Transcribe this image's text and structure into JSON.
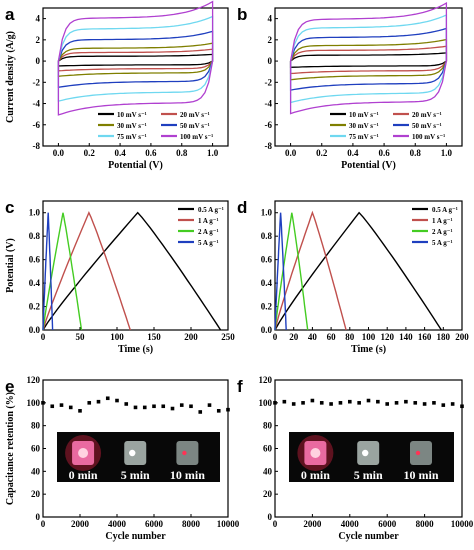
{
  "chart_data": [
    {
      "panel_label": "a",
      "type": "line",
      "subtype": "cyclic-voltammetry",
      "xlabel": "Potential (V)",
      "ylabel": "Current density (A/g)",
      "xlim": [
        -0.1,
        1.1
      ],
      "ylim": [
        -8,
        5
      ],
      "xticks": [
        0.0,
        0.2,
        0.4,
        0.6,
        0.8,
        1.0
      ],
      "yticks": [
        -8,
        -6,
        -4,
        -2,
        0,
        2,
        4
      ],
      "legend_position": "bottom-right",
      "series": [
        {
          "name": "10 mV s⁻¹",
          "color": "#000000",
          "upper": 0.45,
          "lower": -0.35
        },
        {
          "name": "20 mV s⁻¹",
          "color": "#c0504d",
          "upper": 0.8,
          "lower": -0.7
        },
        {
          "name": "30 mV s⁻¹",
          "color": "#7f7f00",
          "upper": 1.2,
          "lower": -1.1
        },
        {
          "name": "50 mV s⁻¹",
          "color": "#1f3fbf",
          "upper": 2.0,
          "lower": -1.9
        },
        {
          "name": "75 mV s⁻¹",
          "color": "#6fd8f0",
          "upper": 3.0,
          "lower": -2.9
        },
        {
          "name": "100 mV s⁻¹",
          "color": "#b040d0",
          "upper": 4.0,
          "lower": -3.9
        }
      ]
    },
    {
      "panel_label": "b",
      "type": "line",
      "subtype": "cyclic-voltammetry",
      "xlabel": "Potential (V)",
      "ylabel": "",
      "xlim": [
        -0.1,
        1.1
      ],
      "ylim": [
        -8,
        5
      ],
      "xticks": [
        0.0,
        0.2,
        0.4,
        0.6,
        0.8,
        1.0
      ],
      "yticks": [
        -8,
        -6,
        -4,
        -2,
        0,
        2,
        4
      ],
      "legend_position": "bottom-right",
      "series": [
        {
          "name": "10 mV s⁻¹",
          "color": "#000000",
          "upper": 0.55,
          "lower": -0.45
        },
        {
          "name": "20 mV s⁻¹",
          "color": "#c0504d",
          "upper": 1.0,
          "lower": -0.9
        },
        {
          "name": "30 mV s⁻¹",
          "color": "#7f7f00",
          "upper": 1.45,
          "lower": -1.35
        },
        {
          "name": "50 mV s⁻¹",
          "color": "#1f3fbf",
          "upper": 2.2,
          "lower": -2.1
        },
        {
          "name": "75 mV s⁻¹",
          "color": "#6fd8f0",
          "upper": 3.1,
          "lower": -3.0
        },
        {
          "name": "100 mV s⁻¹",
          "color": "#b040d0",
          "upper": 3.9,
          "lower": -3.8
        }
      ]
    },
    {
      "panel_label": "c",
      "type": "line",
      "subtype": "galvanostatic-charge-discharge",
      "xlabel": "Time (s)",
      "ylabel": "Potential (V)",
      "xlim": [
        0,
        250
      ],
      "ylim": [
        0,
        1.1
      ],
      "xticks": [
        0,
        50,
        100,
        150,
        200,
        250
      ],
      "yticks": [
        0.0,
        0.2,
        0.4,
        0.6,
        0.8,
        1.0
      ],
      "legend_position": "top-right",
      "series": [
        {
          "name": "0.5 A g⁻¹",
          "color": "#000000",
          "peak_time": 128,
          "end_time": 240
        },
        {
          "name": "1 A g⁻¹",
          "color": "#c0504d",
          "peak_time": 62,
          "end_time": 118
        },
        {
          "name": "2 A g⁻¹",
          "color": "#44cc22",
          "peak_time": 27,
          "end_time": 52
        },
        {
          "name": "5 A g⁻¹",
          "color": "#1f3fbf",
          "peak_time": 7,
          "end_time": 13
        }
      ]
    },
    {
      "panel_label": "d",
      "type": "line",
      "subtype": "galvanostatic-charge-discharge",
      "xlabel": "Time (s)",
      "ylabel": "",
      "xlim": [
        0,
        200
      ],
      "ylim": [
        0,
        1.1
      ],
      "xticks": [
        0,
        20,
        40,
        60,
        80,
        100,
        120,
        140,
        160,
        180,
        200
      ],
      "yticks": [
        0.0,
        0.2,
        0.4,
        0.6,
        0.8,
        1.0
      ],
      "legend_position": "top-right",
      "series": [
        {
          "name": "0.5 A g⁻¹",
          "color": "#000000",
          "peak_time": 90,
          "end_time": 178
        },
        {
          "name": "1 A g⁻¹",
          "color": "#c0504d",
          "peak_time": 40,
          "end_time": 76
        },
        {
          "name": "2 A g⁻¹",
          "color": "#44cc22",
          "peak_time": 18,
          "end_time": 35
        },
        {
          "name": "5 A g⁻¹",
          "color": "#1f3fbf",
          "peak_time": 6,
          "end_time": 12
        }
      ]
    },
    {
      "panel_label": "e",
      "type": "scatter",
      "xlabel": "Cycle number",
      "ylabel": "Capacitance retention (%)",
      "xlim": [
        0,
        10000
      ],
      "ylim": [
        0,
        120
      ],
      "xticks": [
        0,
        2000,
        4000,
        6000,
        8000,
        10000
      ],
      "yticks": [
        0,
        20,
        40,
        60,
        80,
        100,
        120
      ],
      "x": [
        0,
        500,
        1000,
        1500,
        2000,
        2500,
        3000,
        3500,
        4000,
        4500,
        5000,
        5500,
        6000,
        6500,
        7000,
        7500,
        8000,
        8500,
        9000,
        9500,
        10000
      ],
      "y": [
        100,
        97,
        98,
        96,
        93,
        100,
        101,
        104,
        102,
        99,
        96,
        96,
        97,
        97,
        95,
        98,
        97,
        92,
        98,
        93,
        94
      ],
      "inset_labels": [
        "0 min",
        "5 min",
        "10 min"
      ]
    },
    {
      "panel_label": "f",
      "type": "scatter",
      "xlabel": "Cycle number",
      "ylabel": "",
      "xlim": [
        0,
        10000
      ],
      "ylim": [
        0,
        120
      ],
      "xticks": [
        0,
        2000,
        4000,
        6000,
        8000,
        10000
      ],
      "yticks": [
        0,
        20,
        40,
        60,
        80,
        100,
        120
      ],
      "x": [
        0,
        500,
        1000,
        1500,
        2000,
        2500,
        3000,
        3500,
        4000,
        4500,
        5000,
        5500,
        6000,
        6500,
        7000,
        7500,
        8000,
        8500,
        9000,
        9500,
        10000
      ],
      "y": [
        100,
        101,
        99,
        100,
        102,
        100,
        99,
        100,
        101,
        100,
        102,
        101,
        99,
        100,
        101,
        100,
        99,
        100,
        98,
        99,
        97
      ],
      "inset_labels": [
        "0 min",
        "5 min",
        "10 min"
      ]
    }
  ]
}
